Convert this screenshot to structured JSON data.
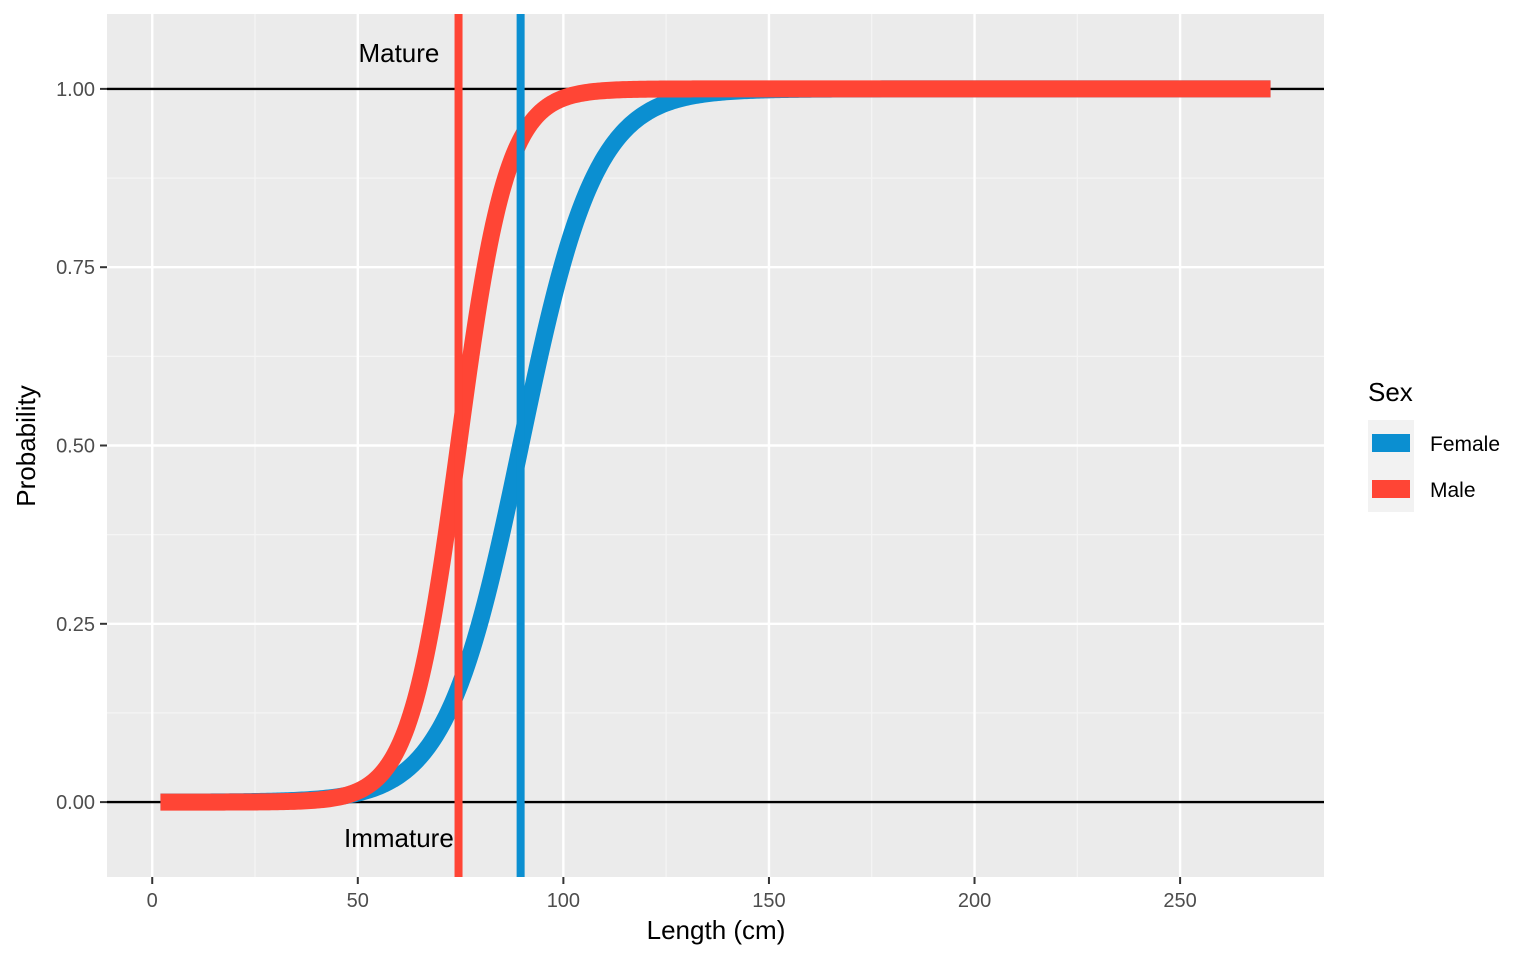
{
  "chart_data": {
    "type": "line",
    "xlabel": "Length (cm)",
    "ylabel": "Probability",
    "xlim": [
      -11,
      285
    ],
    "ylim": [
      -0.105,
      1.105
    ],
    "x_ticks": [
      0,
      50,
      100,
      150,
      200,
      250
    ],
    "x_tick_labels": [
      "0",
      "50",
      "100",
      "150",
      "200",
      "250"
    ],
    "y_ticks": [
      0.0,
      0.25,
      0.5,
      0.75,
      1.0
    ],
    "y_tick_labels": [
      "0.00",
      "0.25",
      "0.50",
      "0.75",
      "1.00"
    ],
    "grid": true,
    "legend": {
      "title": "Sex",
      "position": "right",
      "entries": [
        "Female",
        "Male"
      ]
    },
    "colors": {
      "Female": "#0b8fd1",
      "Male": "#ff4535",
      "panel": "#ebebeb",
      "grid_major": "#ffffff",
      "grid_minor": "#f5f5f5",
      "hline": "#000000"
    },
    "series": [
      {
        "name": "Female",
        "logistic": {
          "L50": 89.6,
          "slope": 0.11
        },
        "x_range": [
          2,
          272
        ]
      },
      {
        "name": "Male",
        "logistic": {
          "L50": 74.5,
          "slope": 0.17
        },
        "x_range": [
          2,
          272
        ]
      }
    ],
    "hlines": [
      0,
      1
    ],
    "vlines": [
      {
        "x": 74.5,
        "series": "Male"
      },
      {
        "x": 89.6,
        "series": "Female"
      }
    ],
    "annotations": [
      {
        "text": "Mature",
        "x": 60,
        "y": 1.05
      },
      {
        "text": "Immature",
        "x": 60,
        "y": -0.05
      }
    ]
  }
}
